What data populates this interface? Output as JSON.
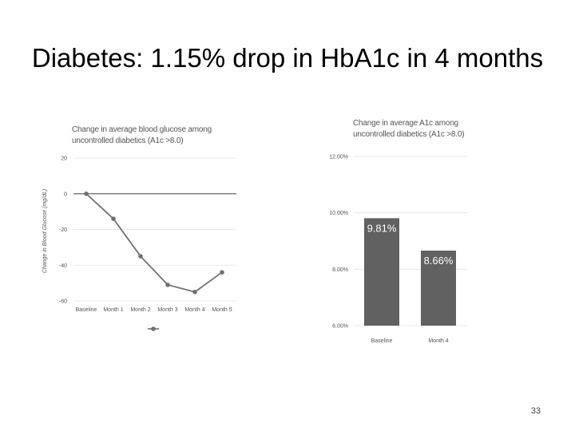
{
  "slide": {
    "title": "Diabetes: 1.15% drop in HbA1c in 4 months",
    "page_number": "33"
  },
  "chart_data": [
    {
      "type": "line",
      "title": "Change in average blood glucose among uncontrolled diabetics (A1c >8.0)",
      "categories": [
        "Baseline",
        "Month 1",
        "Month 2",
        "Month 3",
        "Month 4",
        "Month 5"
      ],
      "series": [
        {
          "values": [
            0,
            -14,
            -35,
            -51,
            -55,
            -44
          ],
          "color": "#707070"
        }
      ],
      "ylabel": "Change in Blood Glucose (mg/dL)",
      "xlabel": "",
      "ylim": [
        -60,
        20
      ],
      "yticks": [
        20,
        0,
        -20,
        -40,
        -60
      ],
      "grid": true,
      "zero_line": true,
      "legend": "bottom-center"
    },
    {
      "type": "bar",
      "title": "Change in average A1c among uncontrolled diabetics (A1c >8.0)",
      "categories": [
        "Baseline",
        "Month 4"
      ],
      "values": [
        9.81,
        8.66
      ],
      "data_labels": [
        "9.81%",
        "8.66%"
      ],
      "color": "#616161",
      "ylim": [
        6,
        12
      ],
      "yticks": [
        "12.00%",
        "10.00%",
        "8.00%",
        "6.00%"
      ],
      "ytick_values": [
        12,
        10,
        8,
        6
      ],
      "grid": true
    }
  ]
}
